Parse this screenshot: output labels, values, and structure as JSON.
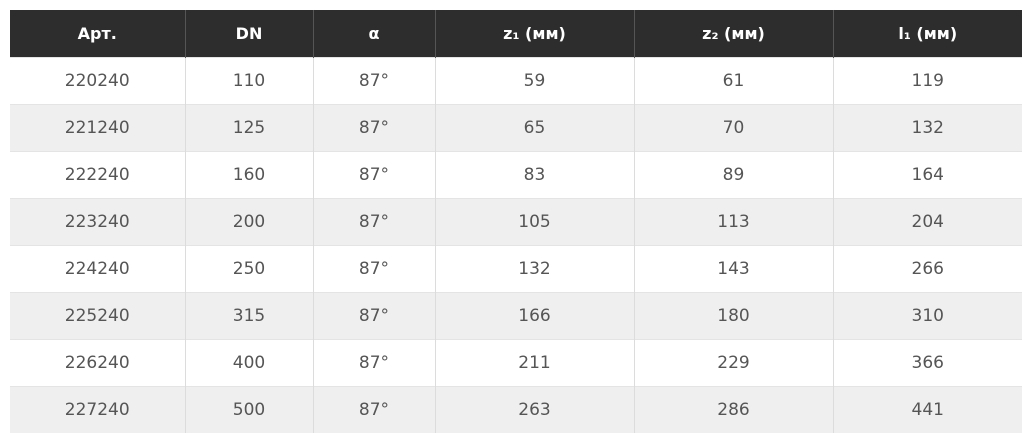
{
  "table": {
    "header": [
      "Арт.",
      "DN",
      "α",
      "z₁ (мм)",
      "z₂ (мм)",
      "l₁ (мм)"
    ],
    "rows": [
      [
        "220240",
        "110",
        "87°",
        "59",
        "61",
        "119"
      ],
      [
        "221240",
        "125",
        "87°",
        "65",
        "70",
        "132"
      ],
      [
        "222240",
        "160",
        "87°",
        "83",
        "89",
        "164"
      ],
      [
        "223240",
        "200",
        "87°",
        "105",
        "113",
        "204"
      ],
      [
        "224240",
        "250",
        "87°",
        "132",
        "143",
        "266"
      ],
      [
        "225240",
        "315",
        "87°",
        "166",
        "180",
        "310"
      ],
      [
        "226240",
        "400",
        "87°",
        "211",
        "229",
        "366"
      ],
      [
        "227240",
        "500",
        "87°",
        "263",
        "286",
        "441"
      ]
    ]
  }
}
